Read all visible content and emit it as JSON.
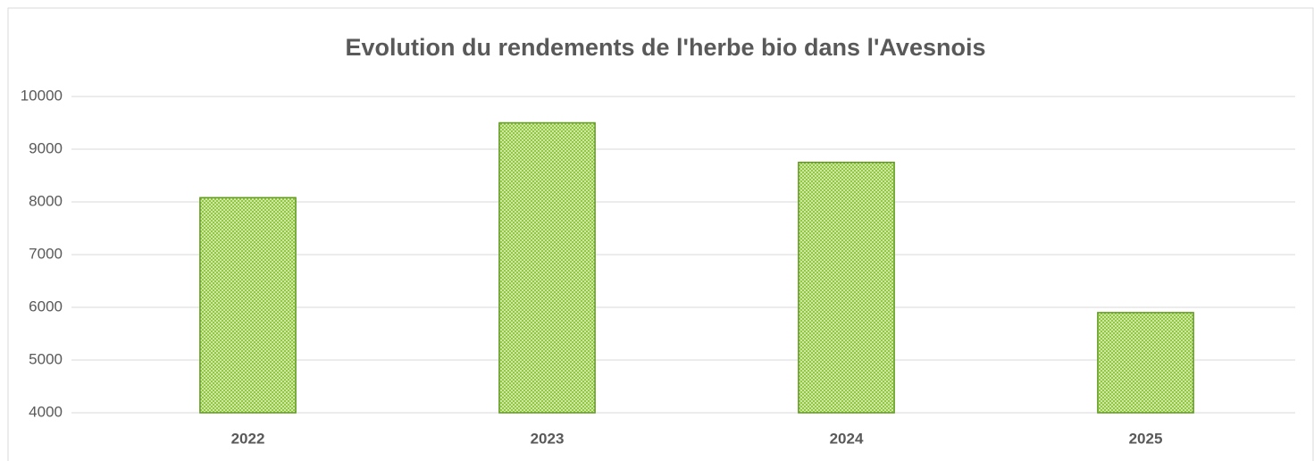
{
  "chart_data": {
    "type": "bar",
    "title": "Evolution du rendements de l'herbe bio dans l'Avesnois",
    "categories": [
      "2022",
      "2023",
      "2024",
      "2025"
    ],
    "values": [
      8080,
      9500,
      8750,
      5900
    ],
    "color": "#92c83e",
    "edgecolor": "#5f9a1e",
    "ylim": [
      4000,
      10000
    ],
    "yticks": [
      4000,
      5000,
      6000,
      7000,
      8000,
      9000,
      10000
    ],
    "grid": true
  }
}
